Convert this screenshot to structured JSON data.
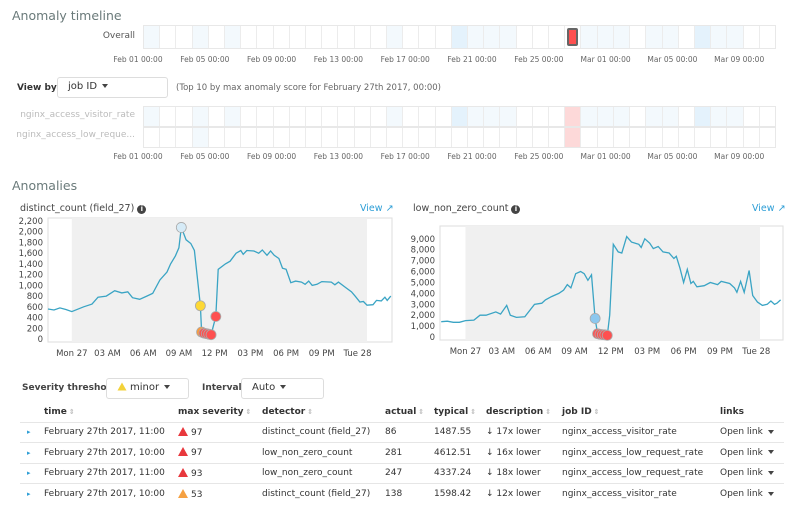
{
  "timeline": {
    "title": "Anomaly timeline",
    "overall_label": "Overall",
    "tick_labels": [
      "Feb 01 00:00",
      "Feb 05 00:00",
      "Feb 09 00:00",
      "Feb 13 00:00",
      "Feb 17 00:00",
      "Feb 21 00:00",
      "Feb 25 00:00",
      "Mar 01 00:00",
      "Mar 05 00:00",
      "Mar 09 00:00"
    ],
    "overall_cells": [
      "low",
      "none",
      "none",
      "low",
      "none",
      "low",
      "none",
      "none",
      "none",
      "none",
      "none",
      "none",
      "none",
      "none",
      "none",
      "low",
      "none",
      "none",
      "none",
      "mid",
      "low",
      "low",
      "low",
      "none",
      "none",
      "none",
      "critical",
      "low",
      "low",
      "low",
      "none",
      "low",
      "low",
      "none",
      "mid",
      "low",
      "low",
      "none",
      "none"
    ],
    "view_by_label": "View by:",
    "view_by_value": "job ID",
    "note": "(Top 10 by max anomaly score for February 27th 2017, 00:00)",
    "lanes": [
      {
        "label": "nginx_access_visitor_rate",
        "cells": [
          "low",
          "none",
          "none",
          "low",
          "none",
          "low",
          "none",
          "none",
          "none",
          "none",
          "none",
          "none",
          "none",
          "none",
          "none",
          "low",
          "none",
          "none",
          "none",
          "mid",
          "low",
          "low",
          "low",
          "none",
          "none",
          "none",
          "selected",
          "low",
          "low",
          "low",
          "none",
          "low",
          "low",
          "none",
          "mid",
          "low",
          "low",
          "none",
          "none"
        ]
      },
      {
        "label": "nginx_access_low_reque...",
        "cells": [
          "none",
          "none",
          "none",
          "low",
          "none",
          "none",
          "none",
          "none",
          "none",
          "none",
          "none",
          "none",
          "none",
          "none",
          "none",
          "none",
          "none",
          "none",
          "none",
          "none",
          "none",
          "none",
          "none",
          "none",
          "none",
          "none",
          "selected",
          "none",
          "none",
          "none",
          "none",
          "none",
          "none",
          "none",
          "none",
          "none",
          "none",
          "none",
          "none"
        ]
      }
    ],
    "colors": {
      "none": "#ffffff",
      "low": "#f3f9fd",
      "mid": "#e4f2fc",
      "critical": "#fe5050",
      "selected": "#fdd9d9"
    }
  },
  "anomalies": {
    "title": "Anomalies",
    "view_label": "View",
    "severity_label": "Severity threshold:",
    "severity_value": "minor",
    "interval_label": "Interval:",
    "interval_value": "Auto",
    "columns": [
      "time",
      "max severity",
      "detector",
      "actual",
      "typical",
      "description",
      "job ID",
      "links"
    ],
    "rows": [
      {
        "time": "February 27th 2017, 11:00",
        "severity": "97",
        "severity_color": "#e8383d",
        "detector": "distinct_count (field_27)",
        "actual": "86",
        "typical": "1487.55",
        "description": "17x lower",
        "job": "nginx_access_visitor_rate",
        "link": "Open link"
      },
      {
        "time": "February 27th 2017, 10:00",
        "severity": "97",
        "severity_color": "#e8383d",
        "detector": "low_non_zero_count",
        "actual": "281",
        "typical": "4612.51",
        "description": "16x lower",
        "job": "nginx_access_low_request_rate",
        "link": "Open link"
      },
      {
        "time": "February 27th 2017, 11:00",
        "severity": "93",
        "severity_color": "#e8383d",
        "detector": "low_non_zero_count",
        "actual": "247",
        "typical": "4337.24",
        "description": "18x lower",
        "job": "nginx_access_low_request_rate",
        "link": "Open link"
      },
      {
        "time": "February 27th 2017, 10:00",
        "severity": "53",
        "severity_color": "#f5a142",
        "detector": "distinct_count (field_27)",
        "actual": "138",
        "typical": "1598.42",
        "description": "12x lower",
        "job": "nginx_access_visitor_rate",
        "link": "Open link"
      }
    ]
  },
  "chart_data": [
    {
      "type": "line",
      "title": "distinct_count (field_27)",
      "xlim": [
        "2017-02-26 22:00",
        "2017-02-28 02:54"
      ],
      "shaded_range": [
        "2017-02-27 00:00",
        "2017-02-28 00:48"
      ],
      "ylim": [
        0,
        2200
      ],
      "yticks": [
        "0",
        "200",
        "400",
        "600",
        "800",
        "1,000",
        "1,200",
        "1,400",
        "1,600",
        "1,800",
        "2,000",
        "2,200"
      ],
      "xticks": [
        {
          "t": "2017-02-27 00:00",
          "label": "Mon 27"
        },
        {
          "t": "2017-02-27 03:00",
          "label": "03 AM"
        },
        {
          "t": "2017-02-27 06:00",
          "label": "06 AM"
        },
        {
          "t": "2017-02-27 09:00",
          "label": "09 AM"
        },
        {
          "t": "2017-02-27 12:00",
          "label": "12 PM"
        },
        {
          "t": "2017-02-27 15:00",
          "label": "03 PM"
        },
        {
          "t": "2017-02-27 18:00",
          "label": "06 PM"
        },
        {
          "t": "2017-02-27 21:00",
          "label": "09 PM"
        },
        {
          "t": "2017-02-28 00:00",
          "label": "Tue 28"
        }
      ],
      "line_color": "#3aa4c4",
      "points": [
        [
          "2017-02-26 22:00",
          560
        ],
        [
          "2017-02-26 22:30",
          540
        ],
        [
          "2017-02-26 23:00",
          580
        ],
        [
          "2017-02-26 23:30",
          550
        ],
        [
          "2017-02-27 00:00",
          510
        ],
        [
          "2017-02-27 01:00",
          600
        ],
        [
          "2017-02-27 01:42",
          650
        ],
        [
          "2017-02-27 02:12",
          780
        ],
        [
          "2017-02-27 02:54",
          800
        ],
        [
          "2017-02-27 03:36",
          900
        ],
        [
          "2017-02-27 04:12",
          860
        ],
        [
          "2017-02-27 04:42",
          880
        ],
        [
          "2017-02-27 05:06",
          770
        ],
        [
          "2017-02-27 05:42",
          740
        ],
        [
          "2017-02-27 06:18",
          800
        ],
        [
          "2017-02-27 06:48",
          850
        ],
        [
          "2017-02-27 07:24",
          1100
        ],
        [
          "2017-02-27 08:00",
          1250
        ],
        [
          "2017-02-27 08:18",
          1400
        ],
        [
          "2017-02-27 08:42",
          1550
        ],
        [
          "2017-02-27 09:00",
          1700
        ],
        [
          "2017-02-27 09:12",
          2080
        ],
        [
          "2017-02-27 09:36",
          1850
        ],
        [
          "2017-02-27 10:00",
          1780
        ],
        [
          "2017-02-27 10:18",
          1650
        ],
        [
          "2017-02-27 10:48",
          620
        ],
        [
          "2017-02-27 10:54",
          130
        ],
        [
          "2017-02-27 11:06",
          110
        ],
        [
          "2017-02-27 11:18",
          100
        ],
        [
          "2017-02-27 11:30",
          90
        ],
        [
          "2017-02-27 11:42",
          80
        ],
        [
          "2017-02-27 12:06",
          420
        ],
        [
          "2017-02-27 12:18",
          1300
        ],
        [
          "2017-02-27 12:54",
          1400
        ],
        [
          "2017-02-27 13:18",
          1450
        ],
        [
          "2017-02-27 13:48",
          1600
        ],
        [
          "2017-02-27 14:12",
          1650
        ],
        [
          "2017-02-27 14:24",
          1580
        ],
        [
          "2017-02-27 14:42",
          1650
        ],
        [
          "2017-02-27 15:18",
          1640
        ],
        [
          "2017-02-27 15:42",
          1600
        ],
        [
          "2017-02-27 16:00",
          1660
        ],
        [
          "2017-02-27 16:24",
          1560
        ],
        [
          "2017-02-27 16:42",
          1640
        ],
        [
          "2017-02-27 17:00",
          1560
        ],
        [
          "2017-02-27 17:24",
          1500
        ],
        [
          "2017-02-27 17:42",
          1320
        ],
        [
          "2017-02-27 18:00",
          1300
        ],
        [
          "2017-02-27 18:24",
          1050
        ],
        [
          "2017-02-27 18:48",
          1080
        ],
        [
          "2017-02-27 19:18",
          1060
        ],
        [
          "2017-02-27 19:36",
          1020
        ],
        [
          "2017-02-27 19:54",
          1080
        ],
        [
          "2017-02-27 20:12",
          1000
        ],
        [
          "2017-02-27 20:36",
          1020
        ],
        [
          "2017-02-27 21:00",
          1070
        ],
        [
          "2017-02-27 21:48",
          1060
        ],
        [
          "2017-02-27 22:06",
          1010
        ],
        [
          "2017-02-27 22:24",
          1060
        ],
        [
          "2017-02-27 23:00",
          960
        ],
        [
          "2017-02-27 23:30",
          880
        ],
        [
          "2017-02-27 23:48",
          800
        ],
        [
          "2017-02-28 00:12",
          690
        ],
        [
          "2017-02-28 00:30",
          700
        ],
        [
          "2017-02-28 00:48",
          630
        ],
        [
          "2017-02-28 01:18",
          640
        ],
        [
          "2017-02-28 01:36",
          720
        ],
        [
          "2017-02-28 02:00",
          710
        ],
        [
          "2017-02-28 02:18",
          780
        ],
        [
          "2017-02-28 02:30",
          720
        ],
        [
          "2017-02-28 02:48",
          800
        ]
      ],
      "anomaly_markers": [
        [
          "2017-02-27 09:12",
          2080,
          "#d6ebf7"
        ],
        [
          "2017-02-27 10:48",
          620,
          "#fdd835"
        ],
        [
          "2017-02-27 10:54",
          130,
          "#fe9a38"
        ],
        [
          "2017-02-27 11:06",
          110,
          "#fe5050"
        ],
        [
          "2017-02-27 11:18",
          100,
          "#fe5050"
        ],
        [
          "2017-02-27 11:30",
          90,
          "#fe5050"
        ],
        [
          "2017-02-27 11:42",
          80,
          "#fe5050"
        ],
        [
          "2017-02-27 12:06",
          420,
          "#fe5050"
        ]
      ]
    },
    {
      "type": "line",
      "title": "low_non_zero_count",
      "xlim": [
        "2017-02-26 21:54",
        "2017-02-28 02:12"
      ],
      "shaded_range": [
        "2017-02-27 00:00",
        "2017-02-28 00:18"
      ],
      "ylim": [
        0,
        9900
      ],
      "yticks": [
        "0",
        "1,000",
        "2,000",
        "3,000",
        "4,000",
        "5,000",
        "6,000",
        "7,000",
        "8,000",
        "9,000"
      ],
      "xticks": [
        {
          "t": "2017-02-27 00:00",
          "label": "Mon 27"
        },
        {
          "t": "2017-02-27 03:00",
          "label": "03 AM"
        },
        {
          "t": "2017-02-27 06:00",
          "label": "06 AM"
        },
        {
          "t": "2017-02-27 09:00",
          "label": "09 AM"
        },
        {
          "t": "2017-02-27 12:00",
          "label": "12 PM"
        },
        {
          "t": "2017-02-27 15:00",
          "label": "03 PM"
        },
        {
          "t": "2017-02-27 18:00",
          "label": "06 PM"
        },
        {
          "t": "2017-02-27 21:00",
          "label": "09 PM"
        },
        {
          "t": "2017-02-28 00:00",
          "label": "Tue 28"
        }
      ],
      "line_color": "#3aa4c4",
      "points": [
        [
          "2017-02-26 22:00",
          1400
        ],
        [
          "2017-02-26 22:30",
          1450
        ],
        [
          "2017-02-26 23:00",
          1350
        ],
        [
          "2017-02-26 23:30",
          1350
        ],
        [
          "2017-02-27 00:00",
          1500
        ],
        [
          "2017-02-27 00:42",
          1550
        ],
        [
          "2017-02-27 01:12",
          2000
        ],
        [
          "2017-02-27 01:42",
          2000
        ],
        [
          "2017-02-27 02:30",
          2300
        ],
        [
          "2017-02-27 02:54",
          2100
        ],
        [
          "2017-02-27 03:24",
          2900
        ],
        [
          "2017-02-27 03:42",
          2000
        ],
        [
          "2017-02-27 04:12",
          1800
        ],
        [
          "2017-02-27 04:54",
          1850
        ],
        [
          "2017-02-27 05:42",
          3000
        ],
        [
          "2017-02-27 06:18",
          3100
        ],
        [
          "2017-02-27 06:36",
          3400
        ],
        [
          "2017-02-27 07:06",
          3700
        ],
        [
          "2017-02-27 07:42",
          4000
        ],
        [
          "2017-02-27 08:06",
          4300
        ],
        [
          "2017-02-27 08:24",
          4800
        ],
        [
          "2017-02-27 08:42",
          4500
        ],
        [
          "2017-02-27 09:06",
          5800
        ],
        [
          "2017-02-27 09:30",
          6000
        ],
        [
          "2017-02-27 09:48",
          5800
        ],
        [
          "2017-02-27 10:06",
          5200
        ],
        [
          "2017-02-27 10:24",
          5700
        ],
        [
          "2017-02-27 10:42",
          1700
        ],
        [
          "2017-02-27 10:54",
          300
        ],
        [
          "2017-02-27 11:06",
          250
        ],
        [
          "2017-02-27 11:18",
          220
        ],
        [
          "2017-02-27 11:30",
          200
        ],
        [
          "2017-02-27 11:42",
          150
        ],
        [
          "2017-02-27 11:54",
          2000
        ],
        [
          "2017-02-27 12:12",
          8500
        ],
        [
          "2017-02-27 12:36",
          7800
        ],
        [
          "2017-02-27 12:54",
          7700
        ],
        [
          "2017-02-27 13:18",
          9200
        ],
        [
          "2017-02-27 13:42",
          8700
        ],
        [
          "2017-02-27 14:18",
          8500
        ],
        [
          "2017-02-27 14:30",
          8200
        ],
        [
          "2017-02-27 14:48",
          9000
        ],
        [
          "2017-02-27 15:12",
          8600
        ],
        [
          "2017-02-27 15:30",
          8100
        ],
        [
          "2017-02-27 15:54",
          8300
        ],
        [
          "2017-02-27 16:18",
          7800
        ],
        [
          "2017-02-27 16:48",
          7700
        ],
        [
          "2017-02-27 17:12",
          7200
        ],
        [
          "2017-02-27 17:24",
          7400
        ],
        [
          "2017-02-27 17:42",
          6300
        ],
        [
          "2017-02-27 18:00",
          5000
        ],
        [
          "2017-02-27 18:18",
          6200
        ],
        [
          "2017-02-27 18:36",
          4900
        ],
        [
          "2017-02-27 18:48",
          5100
        ],
        [
          "2017-02-27 19:06",
          4600
        ],
        [
          "2017-02-27 19:42",
          4700
        ],
        [
          "2017-02-27 20:12",
          5000
        ],
        [
          "2017-02-27 20:48",
          4800
        ],
        [
          "2017-02-27 21:06",
          5100
        ],
        [
          "2017-02-27 21:48",
          4900
        ],
        [
          "2017-02-27 22:12",
          4500
        ],
        [
          "2017-02-27 22:24",
          4100
        ],
        [
          "2017-02-27 22:42",
          5100
        ],
        [
          "2017-02-27 23:00",
          4100
        ],
        [
          "2017-02-27 23:24",
          6100
        ],
        [
          "2017-02-27 23:42",
          3800
        ],
        [
          "2017-02-28 00:06",
          3200
        ],
        [
          "2017-02-28 00:30",
          2900
        ],
        [
          "2017-02-28 00:54",
          3000
        ],
        [
          "2017-02-28 01:12",
          3300
        ],
        [
          "2017-02-28 01:30",
          3000
        ],
        [
          "2017-02-28 01:42",
          3100
        ],
        [
          "2017-02-28 02:00",
          3400
        ]
      ],
      "anomaly_markers": [
        [
          "2017-02-27 10:42",
          1700,
          "#8cc8ef"
        ],
        [
          "2017-02-27 10:54",
          300,
          "#fe5050"
        ],
        [
          "2017-02-27 11:06",
          250,
          "#fe5050"
        ],
        [
          "2017-02-27 11:18",
          220,
          "#fe5050"
        ],
        [
          "2017-02-27 11:30",
          200,
          "#fe5050"
        ],
        [
          "2017-02-27 11:42",
          150,
          "#fe5050"
        ]
      ]
    }
  ]
}
